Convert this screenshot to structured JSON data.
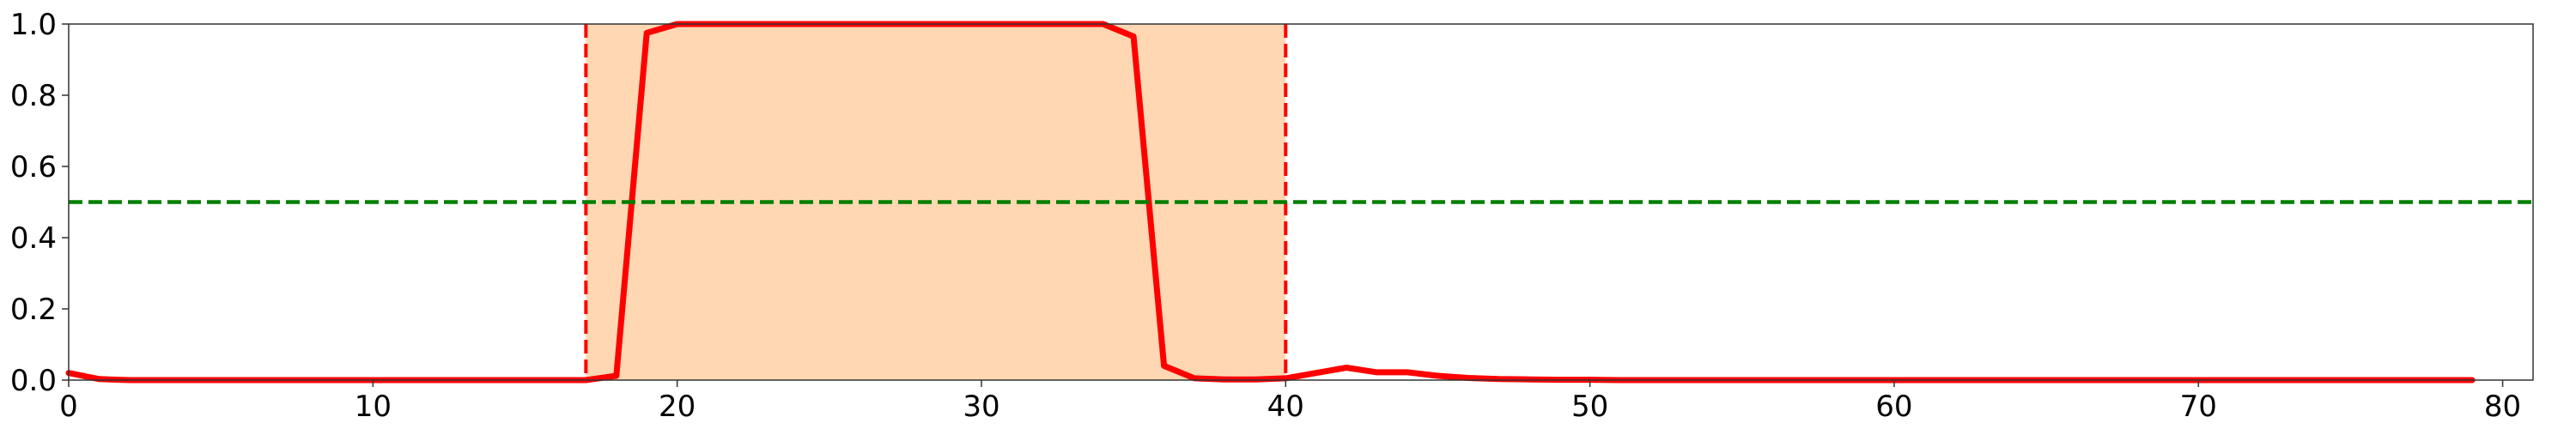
{
  "chart_data": {
    "type": "line",
    "title": "",
    "xlabel": "",
    "ylabel": "",
    "xlim": [
      0,
      81
    ],
    "ylim": [
      0,
      1
    ],
    "x_ticks": [
      0,
      10,
      20,
      30,
      40,
      50,
      60,
      70,
      80
    ],
    "y_ticks": [
      0.0,
      0.2,
      0.4,
      0.6,
      0.8,
      1.0
    ],
    "x_tick_labels": [
      "0",
      "10",
      "20",
      "30",
      "40",
      "50",
      "60",
      "70",
      "80"
    ],
    "y_tick_labels": [
      "0.0",
      "0.2",
      "0.4",
      "0.6",
      "0.8",
      "1.0"
    ],
    "grid": false,
    "series": [
      {
        "color": "#ff0000",
        "x": [
          0,
          1,
          2,
          3,
          4,
          5,
          6,
          7,
          8,
          9,
          10,
          11,
          12,
          13,
          14,
          15,
          16,
          17,
          18,
          19,
          20,
          21,
          22,
          23,
          24,
          25,
          26,
          27,
          28,
          29,
          30,
          31,
          32,
          33,
          34,
          35,
          36,
          37,
          38,
          39,
          40,
          41,
          42,
          43,
          44,
          45,
          46,
          47,
          48,
          49,
          50,
          51,
          52,
          53,
          54,
          55,
          56,
          57,
          58,
          59,
          60,
          61,
          62,
          63,
          64,
          65,
          66,
          67,
          68,
          69,
          70,
          71,
          72,
          73,
          74,
          75,
          76,
          77,
          78,
          79
        ],
        "values": [
          0.02,
          0.003,
          0,
          0,
          0,
          0,
          0,
          0,
          0,
          0,
          0,
          0,
          0,
          0,
          0,
          0,
          0,
          0,
          0.012,
          0.975,
          1,
          1,
          1,
          1,
          1,
          1,
          1,
          1,
          1,
          1,
          1,
          1,
          1,
          1,
          1,
          0.965,
          0.04,
          0.005,
          0.002,
          0.002,
          0.005,
          0.02,
          0.035,
          0.022,
          0.022,
          0.012,
          0.006,
          0.003,
          0.002,
          0.001,
          0.001,
          0,
          0,
          0,
          0,
          0,
          0,
          0,
          0,
          0,
          0,
          0,
          0,
          0,
          0,
          0,
          0,
          0,
          0,
          0,
          0,
          0,
          0,
          0,
          0,
          0,
          0,
          0,
          0,
          0
        ]
      }
    ],
    "shaded_region": {
      "x_start": 17,
      "x_end": 40,
      "color": "#ffd8b3"
    },
    "vertical_lines": [
      {
        "x": 17,
        "color": "#ff0000",
        "style": "dashed"
      },
      {
        "x": 40,
        "color": "#ff0000",
        "style": "dashed"
      }
    ],
    "horizontal_lines": [
      {
        "y": 0.5,
        "color": "#007f00",
        "style": "dashed"
      }
    ]
  }
}
